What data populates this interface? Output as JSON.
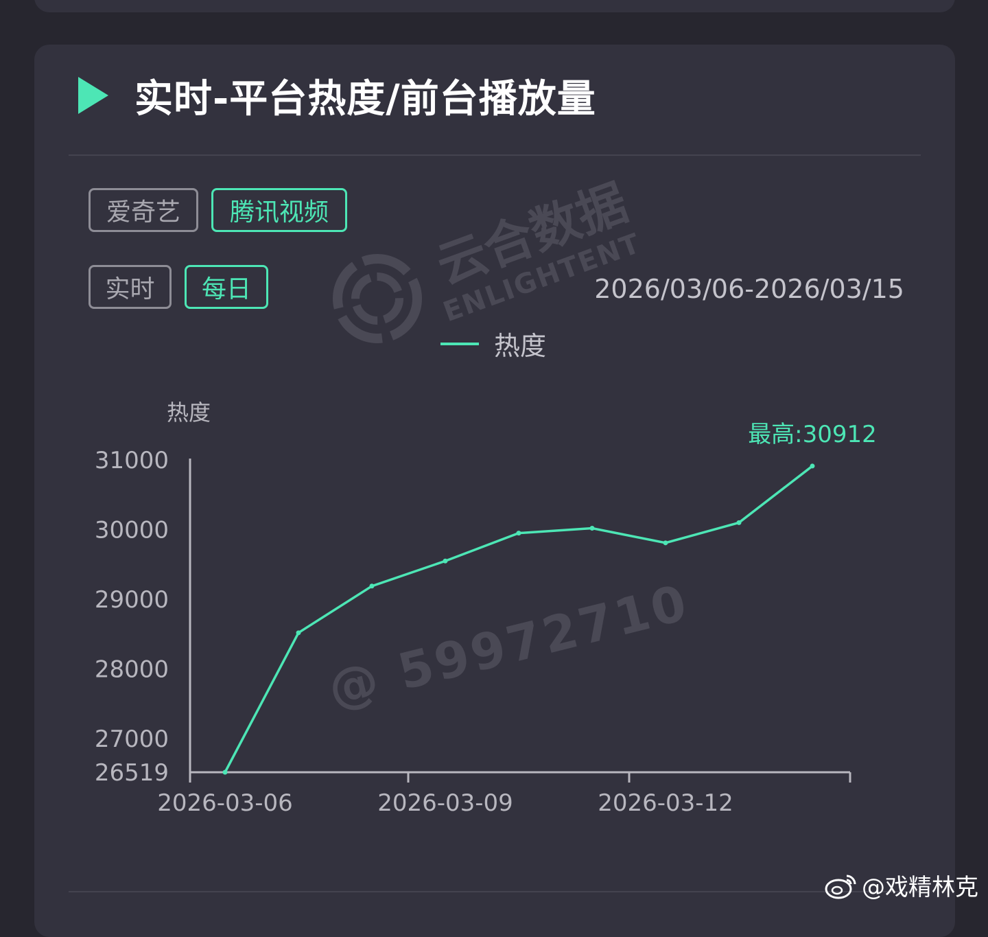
{
  "title": "实时-平台热度/前台播放量",
  "platform_tabs": [
    {
      "label": "爱奇艺",
      "active": false
    },
    {
      "label": "腾讯视频",
      "active": true
    }
  ],
  "period_tabs": [
    {
      "label": "实时",
      "active": false
    },
    {
      "label": "每日",
      "active": true
    }
  ],
  "date_range": "2026/03/06-2026/03/15",
  "legend": {
    "label": "热度"
  },
  "watermarks": {
    "brand_cn": "云合数据",
    "brand_en": "ENLIGHTENT",
    "user_id": "@ 59972710"
  },
  "weibo": {
    "handle": "@戏精林克"
  },
  "colors": {
    "accent": "#4de6b5",
    "card_bg": "#33323e",
    "page_bg": "#27262f"
  },
  "chart_data": {
    "type": "line",
    "ylabel": "热度",
    "x": [
      "2026-03-06",
      "2026-03-07",
      "2026-03-08",
      "2026-03-09",
      "2026-03-10",
      "2026-03-11",
      "2026-03-12",
      "2026-03-13",
      "2026-03-14"
    ],
    "series": [
      {
        "name": "热度",
        "values": [
          26519,
          28520,
          29190,
          29550,
          29950,
          30020,
          29810,
          30100,
          30912
        ]
      }
    ],
    "ylim": [
      26519,
      31000
    ],
    "yticks": [
      26519,
      27000,
      28000,
      29000,
      30000,
      31000
    ],
    "xtick_labels": [
      "2026-03-06",
      "2026-03-09",
      "2026-03-12"
    ],
    "max_annotation": "最高:30912",
    "grid": false,
    "legend_position": "top-center"
  }
}
